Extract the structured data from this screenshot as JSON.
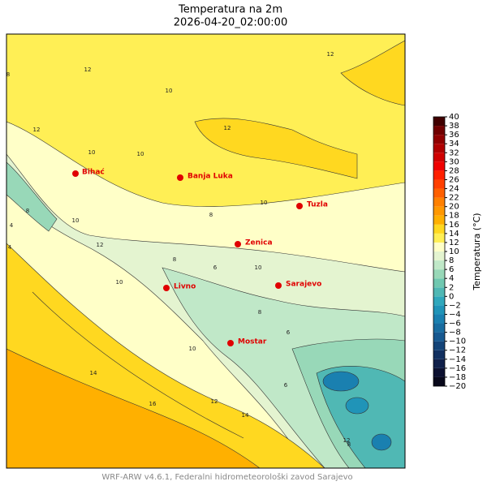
{
  "title": "Temperatura na 2m",
  "subtitle": "2026-04-20_02:00:00",
  "cities": [
    "Bihać",
    "Banja Luka",
    "Tuzla",
    "Zenica",
    "Sarajevo",
    "Livno",
    "Mostar"
  ],
  "contour_labels": [
    "12",
    "12",
    "12",
    "10",
    "10",
    "12",
    "8",
    "10",
    "12",
    "8",
    "10",
    "10",
    "10",
    "8",
    "6",
    "8",
    "10",
    "12",
    "10",
    "8",
    "6",
    "6",
    "8",
    "4",
    "14",
    "14",
    "16",
    "12",
    "4"
  ],
  "colorbar": {
    "label": "Temperatura (°C)",
    "ticks": [
      {
        "value": -20,
        "label": "−20"
      },
      {
        "value": -18,
        "label": "−18"
      },
      {
        "value": -16,
        "label": "−16"
      },
      {
        "value": -14,
        "label": "−14"
      },
      {
        "value": -12,
        "label": "−12"
      },
      {
        "value": -10,
        "label": "−10"
      },
      {
        "value": -8,
        "label": "−8"
      },
      {
        "value": -6,
        "label": "−6"
      },
      {
        "value": -4,
        "label": "−4"
      },
      {
        "value": -2,
        "label": "−2"
      },
      0,
      2,
      4,
      6,
      8,
      10,
      12,
      14,
      16,
      18,
      20,
      22,
      24,
      26,
      28,
      30,
      32,
      34,
      36,
      38,
      40
    ],
    "colors": [
      "#08081a",
      "#0c1030",
      "#10204a",
      "#123060",
      "#144478",
      "#165890",
      "#186ca0",
      "#1a80b0",
      "#2094b8",
      "#30a8bc",
      "#50b8b4",
      "#70c8b0",
      "#98d8b8",
      "#c0e8c8",
      "#e4f4d0",
      "#ffffc8",
      "#ffef55",
      "#ffd820",
      "#ffb000",
      "#ff9800",
      "#ff8000",
      "#ff6000",
      "#ff4000",
      "#ff2000",
      "#f00000",
      "#d00000",
      "#b00000",
      "#900000",
      "#700000",
      "#400000"
    ]
  },
  "footer": "WRF-ARW v4.6.1, Federalni hidrometeorološki zavod Sarajevo"
}
